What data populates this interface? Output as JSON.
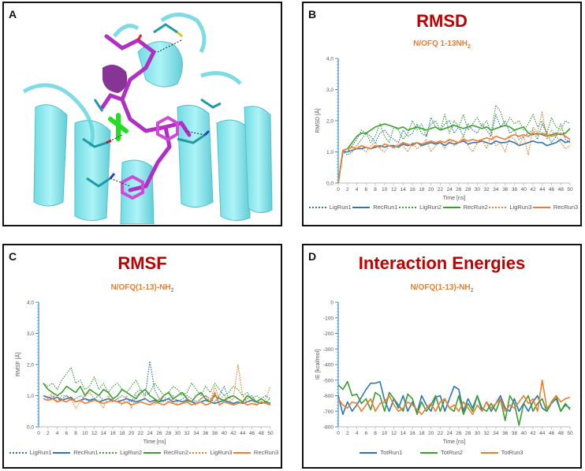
{
  "panels": {
    "a": {
      "letter": "A"
    },
    "b": {
      "letter": "B",
      "title": "RMSD",
      "subtitle_main": "N/OFQ 1-13NH",
      "subtitle_sub": "2"
    },
    "c": {
      "letter": "C",
      "title": "RMSF",
      "subtitle_main": "N/OFQ(1-13)-NH",
      "subtitle_sub": "2"
    },
    "d": {
      "letter": "D",
      "title": "Interaction Energies",
      "subtitle_main": "N/OFQ(1-13)-NH",
      "subtitle_sub": "2"
    }
  },
  "colors": {
    "run1": "#2e75b6",
    "run2": "#3aa02f",
    "run3": "#ed7d31",
    "title": "#c00000",
    "axis": "#3c91c9",
    "protein": "#7fe7ee",
    "ligand": "#b02fc4"
  },
  "chart_data": [
    {
      "id": "rmsd",
      "type": "line",
      "title": "RMSD",
      "subtitle": "N/OFQ 1-13NH2",
      "xlabel": "Time [ns]",
      "ylabel": "RMSD [Å]",
      "ylim": [
        0,
        4
      ],
      "yticks": [
        "0,0",
        "1,0",
        "2,0",
        "3,0",
        "4,0"
      ],
      "xlim": [
        0,
        50
      ],
      "x": [
        0,
        1,
        2,
        3,
        4,
        5,
        6,
        7,
        8,
        9,
        10,
        11,
        12,
        13,
        14,
        15,
        16,
        17,
        18,
        19,
        20,
        21,
        22,
        23,
        24,
        25,
        26,
        27,
        28,
        29,
        30,
        31,
        32,
        33,
        34,
        35,
        36,
        37,
        38,
        39,
        40,
        41,
        42,
        43,
        44,
        45,
        46,
        47,
        48,
        49,
        50
      ],
      "series": [
        {
          "name": "LigRun1",
          "style": "dotted",
          "color": "#2e75b6",
          "values": [
            0.0,
            1.0,
            1.0,
            1.2,
            1.4,
            1.7,
            1.6,
            1.5,
            1.3,
            1.6,
            1.7,
            1.5,
            1.4,
            1.3,
            1.7,
            1.5,
            1.6,
            1.9,
            1.6,
            1.5,
            2.1,
            1.8,
            1.7,
            1.9,
            2.0,
            1.6,
            1.8,
            1.5,
            1.9,
            1.7,
            1.6,
            1.9,
            1.7,
            1.5,
            2.2,
            1.8,
            2.0,
            1.6,
            1.7,
            1.4,
            1.5,
            1.6,
            1.7,
            1.4,
            1.9,
            1.6,
            1.3,
            1.5,
            1.9,
            1.4,
            1.3
          ]
        },
        {
          "name": "RecRun1",
          "style": "solid",
          "color": "#2e75b6",
          "values": [
            0.0,
            1.0,
            1.0,
            1.05,
            1.1,
            1.1,
            1.15,
            1.1,
            1.15,
            1.2,
            1.15,
            1.2,
            1.2,
            1.15,
            1.25,
            1.2,
            1.25,
            1.3,
            1.2,
            1.25,
            1.3,
            1.25,
            1.3,
            1.2,
            1.3,
            1.25,
            1.3,
            1.35,
            1.25,
            1.3,
            1.3,
            1.35,
            1.3,
            1.25,
            1.35,
            1.3,
            1.3,
            1.35,
            1.3,
            1.2,
            1.25,
            1.3,
            1.35,
            1.3,
            1.3,
            1.2,
            1.25,
            1.3,
            1.4,
            1.3,
            1.35
          ]
        },
        {
          "name": "LigRun2",
          "style": "dotted",
          "color": "#3aa02f",
          "values": [
            0.0,
            1.0,
            0.9,
            1.0,
            1.2,
            1.4,
            1.6,
            1.3,
            1.5,
            1.9,
            1.5,
            1.3,
            1.8,
            1.7,
            1.4,
            1.6,
            2.0,
            1.7,
            1.9,
            1.5,
            1.9,
            2.0,
            1.7,
            2.2,
            1.6,
            2.0,
            1.8,
            2.2,
            1.7,
            1.9,
            2.1,
            1.8,
            2.0,
            1.6,
            2.5,
            2.3,
            1.8,
            2.1,
            1.9,
            2.0,
            1.7,
            1.9,
            2.2,
            1.8,
            2.0,
            1.6,
            2.1,
            1.8,
            1.7,
            2.0,
            1.9
          ]
        },
        {
          "name": "RecRun2",
          "style": "solid",
          "color": "#3aa02f",
          "values": [
            0.0,
            1.05,
            1.1,
            1.3,
            1.5,
            1.6,
            1.6,
            1.7,
            1.8,
            1.85,
            1.9,
            1.85,
            1.8,
            1.75,
            1.8,
            1.7,
            1.75,
            1.8,
            1.75,
            1.7,
            1.75,
            1.8,
            1.7,
            1.75,
            1.8,
            1.85,
            1.8,
            1.75,
            1.8,
            1.85,
            1.8,
            1.75,
            1.8,
            1.7,
            1.75,
            1.8,
            1.85,
            1.8,
            1.7,
            1.75,
            1.8,
            1.6,
            1.55,
            1.6,
            1.55,
            1.5,
            1.55,
            1.6,
            1.55,
            1.6,
            1.75
          ]
        },
        {
          "name": "LigRun3",
          "style": "dotted",
          "color": "#ed7d31",
          "values": [
            0.0,
            1.0,
            1.1,
            1.0,
            1.2,
            1.1,
            1.0,
            1.2,
            1.3,
            1.1,
            1.0,
            1.2,
            1.1,
            1.3,
            1.2,
            1.0,
            1.3,
            1.1,
            1.2,
            1.4,
            1.0,
            1.2,
            1.3,
            1.1,
            1.4,
            1.2,
            1.3,
            1.5,
            1.2,
            1.0,
            1.3,
            1.4,
            1.1,
            1.6,
            1.2,
            1.3,
            1.0,
            1.5,
            1.4,
            1.2,
            1.5,
            0.9,
            1.8,
            1.6,
            2.3,
            1.4,
            1.7,
            1.5,
            1.3,
            1.1,
            1.2
          ]
        },
        {
          "name": "RecRun3",
          "style": "solid",
          "color": "#ed7d31",
          "values": [
            0.0,
            1.05,
            1.1,
            1.15,
            1.1,
            1.2,
            1.15,
            1.1,
            1.2,
            1.15,
            1.25,
            1.2,
            1.15,
            1.2,
            1.3,
            1.25,
            1.2,
            1.3,
            1.25,
            1.3,
            1.35,
            1.3,
            1.35,
            1.3,
            1.4,
            1.35,
            1.3,
            1.4,
            1.35,
            1.4,
            1.35,
            1.4,
            1.45,
            1.4,
            1.5,
            1.45,
            1.4,
            1.5,
            1.55,
            1.5,
            1.55,
            1.5,
            1.6,
            1.55,
            1.6,
            1.55,
            1.5,
            1.55,
            1.6,
            1.5,
            1.4
          ]
        }
      ],
      "legend": [
        "LigRun1",
        "RecRun1",
        "LigRun2",
        "RecRun2",
        "LigRun3",
        "RecRun3"
      ]
    },
    {
      "id": "rmsf",
      "type": "line",
      "title": "RMSF",
      "subtitle": "N/OFQ(1-13)-NH2",
      "xlabel": "Time [ns]",
      "ylabel": "RMSF [Å]",
      "ylim": [
        0,
        4
      ],
      "yticks": [
        "0,0",
        "1,0",
        "2,0",
        "3,0",
        "4,0"
      ],
      "xlim": [
        0,
        50
      ],
      "x": [
        1,
        2,
        3,
        4,
        5,
        6,
        7,
        8,
        9,
        10,
        11,
        12,
        13,
        14,
        15,
        16,
        17,
        18,
        19,
        20,
        21,
        22,
        23,
        24,
        25,
        26,
        27,
        28,
        29,
        30,
        31,
        32,
        33,
        34,
        35,
        36,
        37,
        38,
        39,
        40,
        41,
        42,
        43,
        44,
        45,
        46,
        47,
        48,
        49,
        50
      ],
      "series": [
        {
          "name": "LigRun1",
          "style": "dotted",
          "color": "#2e75b6",
          "values": [
            1.0,
            0.9,
            1.0,
            0.8,
            0.9,
            1.0,
            0.85,
            0.9,
            1.0,
            0.9,
            0.8,
            0.9,
            1.0,
            0.85,
            0.9,
            0.8,
            0.9,
            1.0,
            0.9,
            0.8,
            1.1,
            1.2,
            1.0,
            2.1,
            1.2,
            0.9,
            0.8,
            0.9,
            1.0,
            0.8,
            0.9,
            1.0,
            0.9,
            0.8,
            0.9,
            1.0,
            0.9,
            0.8,
            1.0,
            1.3,
            0.9,
            1.0,
            0.9,
            0.8,
            0.9,
            1.0,
            0.8,
            0.9,
            1.0,
            0.9
          ]
        },
        {
          "name": "RecRun1",
          "style": "solid",
          "color": "#2e75b6",
          "values": [
            1.0,
            0.95,
            0.9,
            0.95,
            0.85,
            0.9,
            0.95,
            0.8,
            0.85,
            0.9,
            0.85,
            0.9,
            0.8,
            0.85,
            0.9,
            0.85,
            0.8,
            0.85,
            0.9,
            0.85,
            0.8,
            0.85,
            0.9,
            0.8,
            0.85,
            0.8,
            0.85,
            0.9,
            0.8,
            0.85,
            0.8,
            0.85,
            0.8,
            0.75,
            0.8,
            0.85,
            0.8,
            0.75,
            0.8,
            0.85,
            0.8,
            0.75,
            0.8,
            0.75,
            0.8,
            0.85,
            0.8,
            0.75,
            0.8,
            0.75
          ]
        },
        {
          "name": "LigRun2",
          "style": "dotted",
          "color": "#3aa02f",
          "values": [
            1.4,
            1.3,
            1.4,
            1.2,
            1.5,
            1.7,
            1.9,
            1.4,
            1.5,
            1.2,
            1.3,
            1.6,
            1.2,
            1.4,
            1.1,
            1.3,
            1.4,
            1.2,
            1.1,
            1.3,
            1.5,
            1.2,
            1.0,
            1.1,
            1.4,
            1.2,
            1.0,
            1.1,
            1.3,
            1.2,
            1.0,
            1.1,
            1.4,
            1.2,
            1.0,
            1.3,
            1.1,
            1.4,
            1.2,
            1.0,
            1.1,
            1.3,
            1.2,
            1.0,
            1.1,
            0.9,
            1.0,
            0.9,
            0.8,
            0.9
          ]
        },
        {
          "name": "RecRun2",
          "style": "solid",
          "color": "#3aa02f",
          "values": [
            1.4,
            1.2,
            1.1,
            1.0,
            1.1,
            1.3,
            1.2,
            1.1,
            1.3,
            1.0,
            1.2,
            1.1,
            1.0,
            1.2,
            1.1,
            0.9,
            1.0,
            1.2,
            1.1,
            1.0,
            0.9,
            1.1,
            1.2,
            1.0,
            0.9,
            0.8,
            1.0,
            1.1,
            0.9,
            1.0,
            1.1,
            0.9,
            0.8,
            1.0,
            1.1,
            0.9,
            0.8,
            1.0,
            0.9,
            0.85,
            0.95,
            1.0,
            0.9,
            0.8,
            1.0,
            0.9,
            0.8,
            0.9,
            0.8,
            0.75
          ]
        },
        {
          "name": "LigRun3",
          "style": "dotted",
          "color": "#ed7d31",
          "values": [
            1.0,
            0.9,
            1.1,
            0.8,
            1.0,
            1.0,
            0.9,
            0.6,
            0.8,
            1.0,
            1.1,
            0.9,
            0.8,
            0.6,
            1.0,
            0.8,
            0.9,
            0.7,
            1.0,
            0.6,
            1.0,
            1.1,
            0.9,
            0.8,
            0.7,
            0.9,
            1.0,
            0.8,
            0.9,
            0.7,
            0.8,
            0.9,
            0.8,
            0.7,
            0.9,
            1.0,
            0.8,
            1.3,
            0.9,
            1.0,
            0.8,
            0.9,
            2.0,
            1.0,
            0.8,
            0.9,
            0.7,
            0.8,
            0.9,
            1.3
          ]
        },
        {
          "name": "RecRun3",
          "style": "solid",
          "color": "#ed7d31",
          "values": [
            0.9,
            0.85,
            0.9,
            0.8,
            0.85,
            0.8,
            0.9,
            0.8,
            0.85,
            0.75,
            0.8,
            0.85,
            0.8,
            0.75,
            0.8,
            0.85,
            0.8,
            0.75,
            0.8,
            0.7,
            0.75,
            0.8,
            0.75,
            0.7,
            0.8,
            0.75,
            0.7,
            0.8,
            0.75,
            0.7,
            0.75,
            0.8,
            0.7,
            0.75,
            0.8,
            0.7,
            0.75,
            1.1,
            0.7,
            0.8,
            0.75,
            0.7,
            0.75,
            0.8,
            0.7,
            0.75,
            0.7,
            0.8,
            0.75,
            0.7
          ]
        }
      ],
      "legend": [
        "LigRun1",
        "RecRun1",
        "LigRun2",
        "RecRun2",
        "LigRun3",
        "RecRun3"
      ]
    },
    {
      "id": "energies",
      "type": "line",
      "title": "Interaction Energies",
      "subtitle": "N/OFQ(1-13)-NH2",
      "xlabel": "Time [ns]",
      "ylabel": "IE [kcal/mol]",
      "ylim": [
        -800,
        0
      ],
      "yticks": [
        "0",
        "-100",
        "-200",
        "-300",
        "-400",
        "-500",
        "-600",
        "-700",
        "-800"
      ],
      "xlim": [
        0,
        50
      ],
      "x": [
        0,
        1,
        2,
        3,
        4,
        5,
        6,
        7,
        8,
        9,
        10,
        11,
        12,
        13,
        14,
        15,
        16,
        17,
        18,
        19,
        20,
        21,
        22,
        23,
        24,
        25,
        26,
        27,
        28,
        29,
        30,
        31,
        32,
        33,
        34,
        35,
        36,
        37,
        38,
        39,
        40,
        41,
        42,
        43,
        44,
        45,
        46,
        47,
        48,
        49,
        50
      ],
      "series": [
        {
          "name": "TotRun1",
          "style": "solid",
          "color": "#2e75b6",
          "values": [
            -600,
            -720,
            -640,
            -700,
            -660,
            -610,
            -560,
            -520,
            -520,
            -510,
            -630,
            -700,
            -620,
            -680,
            -600,
            -700,
            -640,
            -710,
            -600,
            -660,
            -700,
            -610,
            -600,
            -700,
            -620,
            -540,
            -560,
            -700,
            -620,
            -680,
            -600,
            -700,
            -640,
            -700,
            -650,
            -600,
            -680,
            -700,
            -620,
            -700,
            -650,
            -700,
            -640,
            -600,
            -680,
            -700,
            -650,
            -620,
            -700,
            -660,
            -680
          ]
        },
        {
          "name": "TotRun2",
          "style": "solid",
          "color": "#3aa02f",
          "values": [
            -530,
            -560,
            -510,
            -600,
            -590,
            -650,
            -620,
            -690,
            -580,
            -600,
            -700,
            -580,
            -620,
            -660,
            -700,
            -590,
            -620,
            -720,
            -640,
            -700,
            -660,
            -600,
            -700,
            -620,
            -680,
            -700,
            -600,
            -720,
            -650,
            -700,
            -600,
            -680,
            -700,
            -650,
            -700,
            -620,
            -760,
            -600,
            -650,
            -790,
            -650,
            -600,
            -700,
            -650,
            -620,
            -700,
            -640,
            -600,
            -700,
            -650,
            -690
          ]
        },
        {
          "name": "TotRun3",
          "style": "solid",
          "color": "#ed7d31",
          "values": [
            -620,
            -660,
            -680,
            -640,
            -650,
            -700,
            -660,
            -620,
            -700,
            -650,
            -640,
            -600,
            -660,
            -700,
            -680,
            -640,
            -660,
            -690,
            -720,
            -680,
            -650,
            -700,
            -640,
            -620,
            -680,
            -660,
            -700,
            -640,
            -680,
            -720,
            -660,
            -700,
            -640,
            -680,
            -650,
            -620,
            -700,
            -660,
            -680,
            -640,
            -600,
            -650,
            -620,
            -700,
            -500,
            -680,
            -650,
            -600,
            -640,
            -620,
            -610
          ]
        }
      ],
      "legend": [
        "TotRun1",
        "TotRun2",
        "TotRun3"
      ]
    }
  ]
}
